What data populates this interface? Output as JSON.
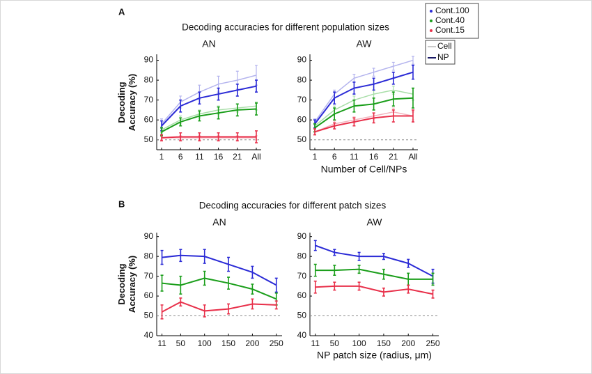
{
  "panels": [
    {
      "label": "A",
      "title": "Decoding accuracies for different population sizes"
    },
    {
      "label": "B",
      "title": "Decoding accuracies for different patch sizes"
    }
  ],
  "chart_data": [
    {
      "type": "line",
      "title": "AN",
      "ylabel": "Decoding Accuracy (%)",
      "categories": [
        "1",
        "6",
        "11",
        "16",
        "21",
        "All"
      ],
      "ylim": [
        45,
        93
      ],
      "yticks": [
        50,
        60,
        70,
        80,
        90
      ],
      "chance_line": 50,
      "series": [
        {
          "name": "Cont.100",
          "line": "Cell",
          "color": "#b4b4ee",
          "values": [
            58,
            69,
            74,
            78,
            80,
            82.5
          ],
          "errors": [
            2.5,
            3,
            3.5,
            4,
            4.5,
            5
          ]
        },
        {
          "name": "Cont.40",
          "line": "Cell",
          "color": "#a8dea8",
          "values": [
            55,
            60,
            63,
            65,
            66,
            67
          ],
          "errors": [
            1.5,
            2,
            2,
            2,
            2,
            2
          ]
        },
        {
          "name": "Cont.15",
          "line": "Cell",
          "color": "#f3b3be",
          "values": [
            51,
            51,
            51,
            51,
            51,
            51
          ],
          "errors": [
            1,
            1,
            1,
            1,
            1,
            1
          ]
        },
        {
          "name": "Cont.100",
          "line": "NP",
          "color": "#2b2bd6",
          "values": [
            57,
            67,
            71,
            73,
            75,
            77
          ],
          "errors": [
            2.5,
            3,
            3,
            3,
            3,
            3
          ]
        },
        {
          "name": "Cont.40",
          "line": "NP",
          "color": "#1a9e1a",
          "values": [
            54,
            59,
            62,
            63.5,
            65,
            65.5
          ],
          "errors": [
            2,
            2,
            2.5,
            3,
            3,
            3
          ]
        },
        {
          "name": "Cont.15",
          "line": "NP",
          "color": "#e8304a",
          "values": [
            51,
            51.5,
            51.5,
            51.5,
            51.5,
            51.5
          ],
          "errors": [
            1.5,
            2,
            2,
            2,
            2,
            3
          ]
        }
      ]
    },
    {
      "type": "line",
      "title": "AW",
      "xlabel": "Number of Cell/NPs",
      "categories": [
        "1",
        "6",
        "11",
        "16",
        "21",
        "All"
      ],
      "ylim": [
        45,
        93
      ],
      "yticks": [
        50,
        60,
        70,
        80,
        90
      ],
      "chance_line": 50,
      "series": [
        {
          "name": "Cont.100",
          "line": "Cell",
          "color": "#b4b4ee",
          "values": [
            59,
            73,
            81,
            84,
            87,
            90
          ],
          "errors": [
            1.5,
            2,
            2,
            2,
            2,
            2
          ]
        },
        {
          "name": "Cont.40",
          "line": "Cell",
          "color": "#a8dea8",
          "values": [
            57,
            65,
            70,
            73,
            75,
            73
          ],
          "errors": [
            1.5,
            2,
            2,
            2,
            2,
            3
          ]
        },
        {
          "name": "Cont.15",
          "line": "Cell",
          "color": "#f3b3be",
          "values": [
            54,
            58,
            60,
            62,
            64,
            62
          ],
          "errors": [
            1.5,
            1.5,
            1.5,
            1.5,
            2,
            2
          ]
        },
        {
          "name": "Cont.100",
          "line": "NP",
          "color": "#2b2bd6",
          "values": [
            58,
            71,
            76,
            78,
            81,
            84
          ],
          "errors": [
            2,
            3,
            3,
            3,
            3,
            3.5
          ]
        },
        {
          "name": "Cont.40",
          "line": "NP",
          "color": "#1a9e1a",
          "values": [
            56,
            63,
            67,
            68,
            70.5,
            71
          ],
          "errors": [
            2,
            3,
            3,
            3,
            3.5,
            5
          ]
        },
        {
          "name": "Cont.15",
          "line": "NP",
          "color": "#e8304a",
          "values": [
            54,
            57,
            59,
            61,
            62,
            62
          ],
          "errors": [
            1.5,
            1.5,
            2,
            2.5,
            3,
            3
          ]
        }
      ]
    },
    {
      "type": "line",
      "title": "AN",
      "ylabel": "Decoding Accuracy (%)",
      "x": [
        11,
        50,
        100,
        150,
        200,
        250
      ],
      "xlim": [
        0,
        262
      ],
      "xticks": [
        11,
        50,
        100,
        150,
        200,
        250
      ],
      "ylim": [
        40,
        92
      ],
      "yticks": [
        40,
        50,
        60,
        70,
        80,
        90
      ],
      "chance_line": 50,
      "series": [
        {
          "name": "Cont.100",
          "color": "#2b2bd6",
          "values": [
            79.5,
            80.5,
            80,
            76,
            72,
            65.5
          ],
          "errors": [
            3.5,
            3,
            3.5,
            3.5,
            3,
            3.5
          ]
        },
        {
          "name": "Cont.40",
          "color": "#1a9e1a",
          "values": [
            66.5,
            65.5,
            69,
            66.5,
            63.5,
            58.5
          ],
          "errors": [
            4,
            4.5,
            3.5,
            3,
            2.5,
            3
          ]
        },
        {
          "name": "Cont.15",
          "color": "#e8304a",
          "values": [
            52,
            57,
            52.5,
            53.5,
            56,
            55.5
          ],
          "errors": [
            3.5,
            2,
            3,
            2.5,
            2.5,
            2
          ]
        }
      ]
    },
    {
      "type": "line",
      "title": "AW",
      "xlabel": "NP patch size (radius, μm)",
      "x": [
        11,
        50,
        100,
        150,
        200,
        250
      ],
      "xlim": [
        0,
        262
      ],
      "xticks": [
        11,
        50,
        100,
        150,
        200,
        250
      ],
      "ylim": [
        40,
        92
      ],
      "yticks": [
        40,
        50,
        60,
        70,
        80,
        90
      ],
      "chance_line": 50,
      "series": [
        {
          "name": "Cont.100",
          "color": "#2b2bd6",
          "values": [
            85.5,
            82,
            80,
            80,
            76.5,
            70
          ],
          "errors": [
            2.5,
            1.5,
            2,
            1.5,
            2,
            3.5
          ]
        },
        {
          "name": "Cont.40",
          "color": "#1a9e1a",
          "values": [
            73,
            73,
            73.5,
            71,
            68.5,
            68.5
          ],
          "errors": [
            3,
            2.5,
            2,
            2.5,
            3,
            3
          ]
        },
        {
          "name": "Cont.15",
          "color": "#e8304a",
          "values": [
            64.5,
            65,
            65,
            62,
            63.5,
            61
          ],
          "errors": [
            3,
            2,
            2,
            2,
            2,
            2
          ]
        }
      ]
    }
  ]
}
